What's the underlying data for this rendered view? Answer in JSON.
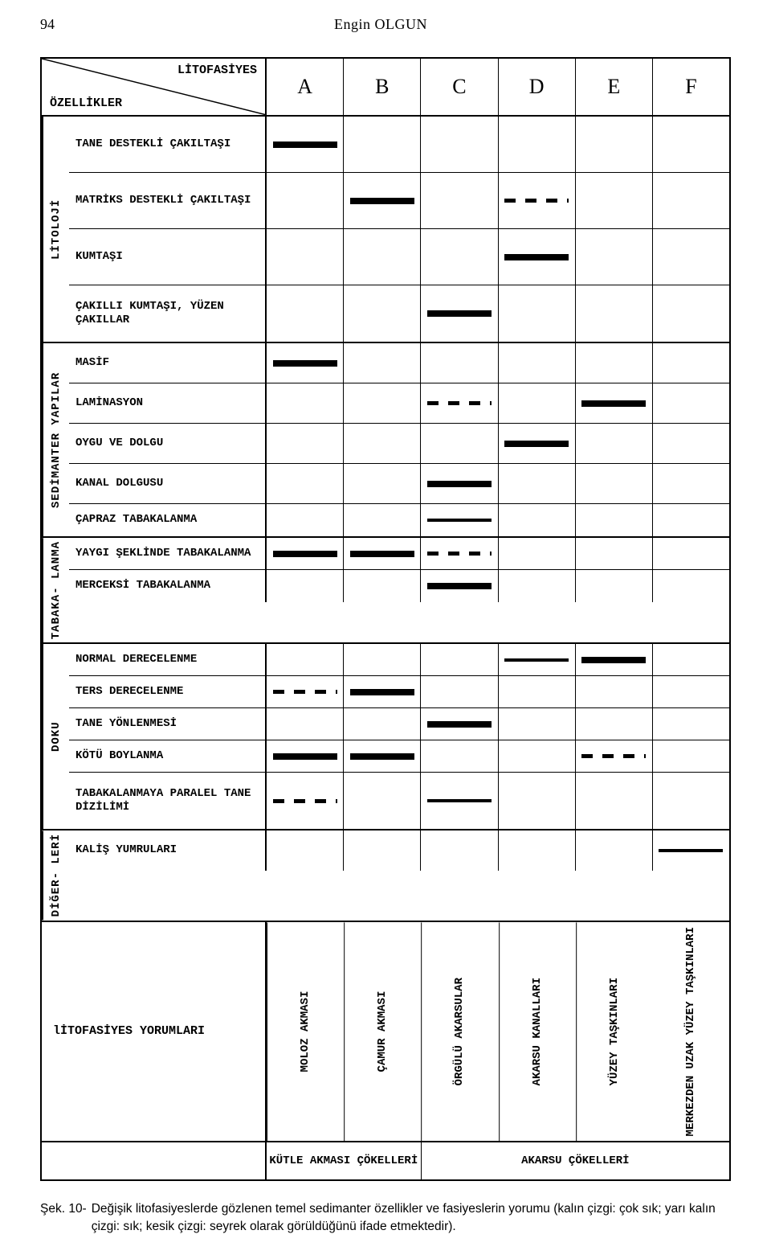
{
  "page_number": "94",
  "author": "Engin OLGUN",
  "colors": {
    "ink": "#000000",
    "background": "#ffffff"
  },
  "corner": {
    "top": "LİTOFASİYES",
    "bottom": "ÖZELLİKLER"
  },
  "columns": [
    "A",
    "B",
    "C",
    "D",
    "E",
    "F"
  ],
  "groups": [
    {
      "label": "LİTOLOJİ",
      "rows": [
        {
          "label": "TANE DESTEKLİ ÇAKILTAŞI",
          "pattern": [
            "thick",
            "",
            "",
            "",
            "",
            ""
          ],
          "tall": true
        },
        {
          "label": "MATRİKS DESTEKLİ ÇAKILTAŞI",
          "pattern": [
            "",
            "thick",
            "",
            "dashed",
            "",
            ""
          ],
          "tall": true
        },
        {
          "label": "KUMTAŞI",
          "pattern": [
            "",
            "",
            "",
            "thick",
            "",
            ""
          ],
          "tall": true
        },
        {
          "label": "ÇAKILLI KUMTAŞI, YÜZEN ÇAKILLAR",
          "pattern": [
            "",
            "",
            "thick",
            "",
            "",
            ""
          ],
          "tall": true
        }
      ]
    },
    {
      "label": "SEDİMANTER YAPILAR",
      "rows": [
        {
          "label": "MASİF",
          "pattern": [
            "thick",
            "",
            "",
            "",
            "",
            ""
          ]
        },
        {
          "label": "LAMİNASYON",
          "pattern": [
            "",
            "",
            "dashed",
            "",
            "thick",
            ""
          ]
        },
        {
          "label": "OYGU VE DOLGU",
          "pattern": [
            "",
            "",
            "",
            "thick",
            "",
            ""
          ]
        },
        {
          "label": "KANAL DOLGUSU",
          "pattern": [
            "",
            "",
            "thick",
            "",
            "",
            ""
          ]
        },
        {
          "label": "ÇAPRAZ TABAKALANMA",
          "pattern": [
            "",
            "",
            "thin",
            "",
            "",
            ""
          ],
          "short": true
        }
      ]
    },
    {
      "label": "TABAKA- LANMA",
      "rows": [
        {
          "label": "YAYGI ŞEKLİNDE TABAKALANMA",
          "pattern": [
            "thick",
            "thick",
            "dashed",
            "",
            "",
            ""
          ],
          "short": true
        },
        {
          "label": "MERCEKSİ TABAKALANMA",
          "pattern": [
            "",
            "",
            "thick",
            "",
            "",
            ""
          ],
          "short": true
        }
      ]
    },
    {
      "label": "DOKU",
      "rows": [
        {
          "label": "NORMAL DERECELENME",
          "pattern": [
            "",
            "",
            "",
            "thin",
            "thick",
            ""
          ],
          "short": true
        },
        {
          "label": "TERS DERECELENME",
          "pattern": [
            "dashed",
            "thick",
            "",
            "",
            "",
            ""
          ],
          "short": true
        },
        {
          "label": "TANE YÖNLENMESİ",
          "pattern": [
            "",
            "",
            "thick",
            "",
            "",
            ""
          ],
          "short": true
        },
        {
          "label": "KÖTÜ BOYLANMA",
          "pattern": [
            "thick",
            "thick",
            "",
            "",
            "dashed",
            ""
          ],
          "short": true
        },
        {
          "label": "TABAKALANMAYA PARALEL TANE DİZİLİMİ",
          "pattern": [
            "dashed",
            "",
            "thin",
            "",
            "",
            ""
          ],
          "tall": true
        }
      ]
    },
    {
      "label": "DİĞER- LERİ",
      "rows": [
        {
          "label": "KALİŞ YUMRULARI",
          "pattern": [
            "",
            "",
            "",
            "",
            "",
            "thin"
          ]
        }
      ]
    }
  ],
  "interpretation": {
    "label": "lİTOFASİYES YORUMLARI",
    "values": [
      "MOLOZ AKMASI",
      "ÇAMUR AKMASI",
      "ÖRGÜLÜ AKARSULAR",
      "AKARSU KANALLARI",
      "YÜZEY TAŞKINLARI",
      "MERKEZDEN UZAK YÜZEY TAŞKINLARI"
    ]
  },
  "bottom_groups": [
    {
      "label": "KÜTLE AKMASI ÇÖKELLERİ",
      "span": 2
    },
    {
      "label": "AKARSU ÇÖKELLERİ",
      "span": 4
    }
  ],
  "caption": {
    "label": "Şek. 10-",
    "text": "Değişik litofasiyeslerde gözlenen temel sedimanter özellikler ve fasiyeslerin yorumu (kalın çizgi: çok sık; yarı kalın çizgi: sık; kesik çizgi: seyrek olarak görüldüğünü ifade etmektedir)."
  },
  "legend_semantics": {
    "thick": "çok sık",
    "thin": "sık",
    "dashed": "seyrek"
  }
}
